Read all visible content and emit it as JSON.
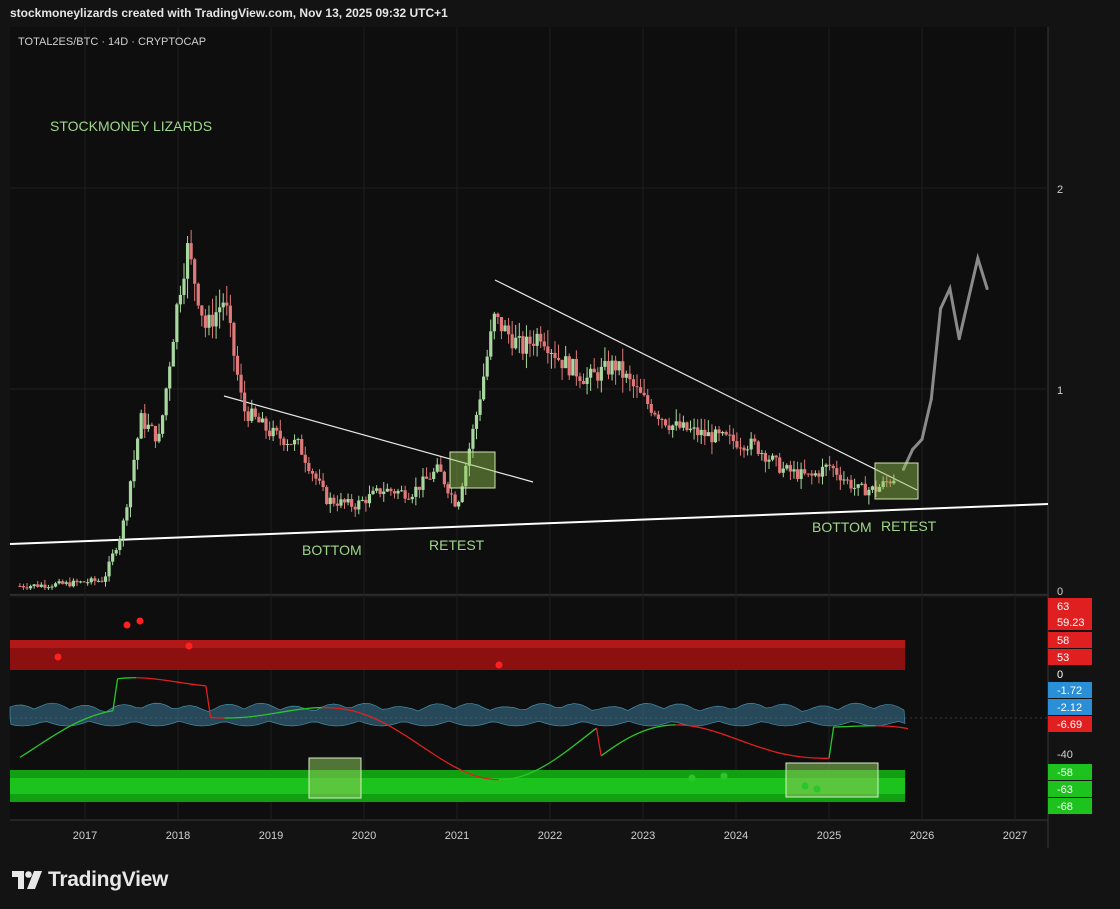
{
  "header": {
    "text": "stockmoneylizards created with TradingView.com, Nov 13, 2025 09:32 UTC+1"
  },
  "brand": {
    "name": "TradingView"
  },
  "colors": {
    "background": "#0e0e0e",
    "up": "#a8d8a0",
    "down": "#e07a7a",
    "projection": "#8a8a8a",
    "trendline": "#ffffff",
    "annotation": "#9fd68a"
  },
  "chart_data": [
    {
      "type": "candlestick",
      "symbol_label": "TOTAL2ES/BTC · 14D · CRYPTOCAP",
      "watermark": "STOCKMONEY LIZARDS",
      "x_ticks": [
        "2017",
        "2018",
        "2019",
        "2020",
        "2021",
        "2022",
        "2023",
        "2024",
        "2025",
        "2026",
        "2027"
      ],
      "y_ticks": [
        "2",
        "1",
        "0"
      ],
      "ylim": [
        0,
        2.0
      ],
      "approx_series": {
        "name": "",
        "x": [
          2016.3,
          2016.8,
          2017.2,
          2017.4,
          2017.6,
          2017.8,
          2018.0,
          2018.1,
          2018.3,
          2018.5,
          2018.7,
          2019.0,
          2019.3,
          2019.6,
          2019.9,
          2020.2,
          2020.5,
          2020.8,
          2021.0,
          2021.2,
          2021.4,
          2021.7,
          2021.9,
          2022.1,
          2022.4,
          2022.7,
          2023.0,
          2023.3,
          2023.6,
          2023.9,
          2024.2,
          2024.5,
          2024.8,
          2025.0,
          2025.3,
          2025.5,
          2025.7
        ],
        "y": [
          0.02,
          0.03,
          0.05,
          0.3,
          0.85,
          0.75,
          1.45,
          1.7,
          1.3,
          1.45,
          0.9,
          0.78,
          0.72,
          0.45,
          0.42,
          0.5,
          0.48,
          0.6,
          0.42,
          0.85,
          1.35,
          1.2,
          1.28,
          1.15,
          1.05,
          1.12,
          0.95,
          0.82,
          0.78,
          0.75,
          0.72,
          0.6,
          0.56,
          0.62,
          0.5,
          0.5,
          0.56
        ]
      },
      "projection": {
        "x": [
          2025.8,
          2025.9,
          2026.0,
          2026.1,
          2026.2,
          2026.3,
          2026.4,
          2026.5,
          2026.6,
          2026.7
        ],
        "y": [
          0.6,
          0.7,
          0.75,
          0.95,
          1.4,
          1.5,
          1.25,
          1.45,
          1.65,
          1.5
        ]
      },
      "annotations": [
        "BOTTOM",
        "RETEST",
        "BOTTOM",
        "RETEST"
      ]
    },
    {
      "type": "oscillator",
      "y_ticks": [
        "0",
        "-40"
      ],
      "price_labels": [
        {
          "text": "63",
          "color": "#e02020"
        },
        {
          "text": "59.23",
          "color": "#e02020"
        },
        {
          "text": "58",
          "color": "#e02020"
        },
        {
          "text": "53",
          "color": "#e02020"
        },
        {
          "text": "-1.72",
          "color": "#2a8fd6"
        },
        {
          "text": "-2.12",
          "color": "#2a8fd6"
        },
        {
          "text": "-6.69",
          "color": "#e02020"
        },
        {
          "text": "-58",
          "color": "#1ec21e"
        },
        {
          "text": "-63",
          "color": "#1ec21e"
        },
        {
          "text": "-68",
          "color": "#1ec21e"
        }
      ],
      "zones": {
        "overbought": [
          53,
          63
        ],
        "oversold": [
          -68,
          -58
        ]
      }
    }
  ]
}
